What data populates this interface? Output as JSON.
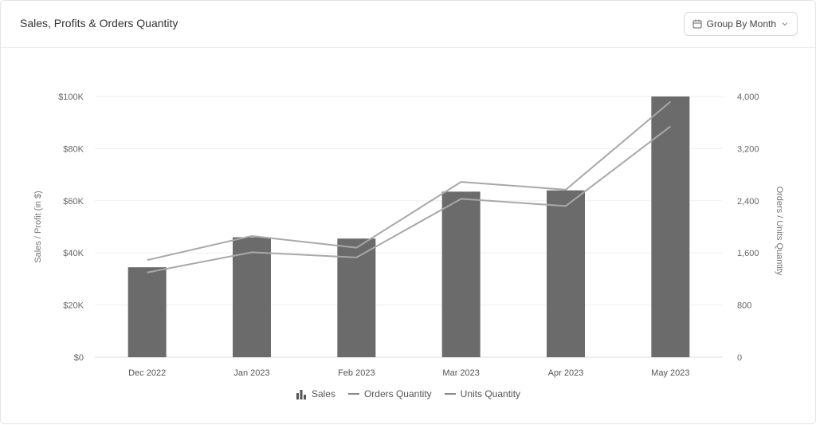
{
  "header": {
    "title": "Sales, Profits & Orders Quantity",
    "group_by_label": "Group By Month"
  },
  "icons": {
    "calendar": "calendar-icon",
    "chevron": "chevron-down-icon",
    "bar_legend": "bar-chart-icon"
  },
  "colors": {
    "bar": "#6b6b6b",
    "orders_line": "#a8a8a8",
    "units_line": "#a8a8a8",
    "grid": "#efefef"
  },
  "chart_data": {
    "type": "bar",
    "categories": [
      "Dec 2022",
      "Jan 2023",
      "Feb 2023",
      "Mar 2023",
      "Apr 2023",
      "May 2023"
    ],
    "series": [
      {
        "name": "Sales",
        "type": "bar",
        "axis": "left",
        "values": [
          34500,
          46000,
          45500,
          63500,
          64000,
          100000
        ]
      },
      {
        "name": "Orders Quantity",
        "type": "line",
        "axis": "right",
        "values": [
          1490,
          1860,
          1680,
          2690,
          2570,
          3920
        ]
      },
      {
        "name": "Units Quantity",
        "type": "line",
        "axis": "right",
        "values": [
          1300,
          1610,
          1530,
          2430,
          2320,
          3540
        ]
      }
    ],
    "ylabel": "Sales / Profit (in $)",
    "y2label": "Orders / Units Quantity",
    "ylim": [
      0,
      100000
    ],
    "y2lim": [
      0,
      4000
    ],
    "yticks": [
      "$0",
      "$20K",
      "$40K",
      "$60K",
      "$80K",
      "$100K"
    ],
    "y2ticks": [
      "0",
      "800",
      "1,600",
      "2,400",
      "3,200",
      "4,000"
    ],
    "grid": true,
    "legend_position": "bottom-center"
  }
}
